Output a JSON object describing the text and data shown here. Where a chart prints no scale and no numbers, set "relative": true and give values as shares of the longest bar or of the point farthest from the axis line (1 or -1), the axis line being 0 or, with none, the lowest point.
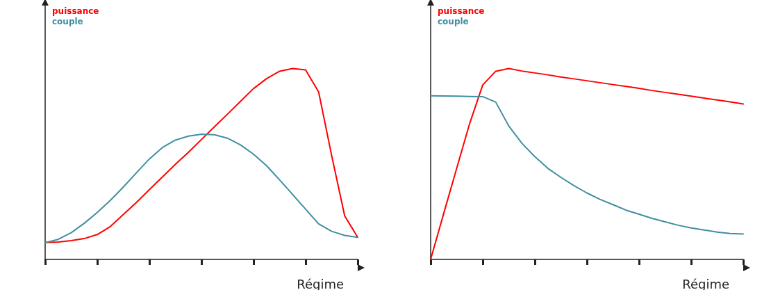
{
  "chart_data": [
    {
      "type": "line",
      "relative": true,
      "xlabel": "Régime",
      "legend": "top left",
      "marker": "none",
      "line_style": "solid",
      "grid": false,
      "tick_labels": false,
      "categories": [
        null,
        null,
        null,
        null,
        null,
        null,
        null,
        null,
        null,
        null,
        null,
        null,
        null,
        null,
        null,
        null,
        null,
        null,
        null,
        null,
        null,
        null,
        null,
        null,
        null
      ],
      "series": [
        {
          "name": "puissance",
          "color": "#ff0000",
          "values": [
            0.088,
            0.091,
            0.098,
            0.109,
            0.13,
            0.172,
            0.235,
            0.298,
            0.365,
            0.432,
            0.498,
            0.561,
            0.628,
            0.695,
            0.761,
            0.828,
            0.895,
            0.947,
            0.986,
            1,
            0.993,
            0.877,
            0.544,
            0.228,
            0.116
          ]
        },
        {
          "name": "couple",
          "color": "#3f8fa0",
          "values": [
            0.088,
            0.105,
            0.14,
            0.189,
            0.246,
            0.309,
            0.379,
            0.453,
            0.526,
            0.586,
            0.625,
            0.646,
            0.656,
            0.653,
            0.635,
            0.6,
            0.551,
            0.491,
            0.417,
            0.34,
            0.263,
            0.186,
            0.147,
            0.126,
            0.116
          ]
        }
      ]
    },
    {
      "type": "line",
      "relative": true,
      "xlabel": "Régime",
      "legend": "top left",
      "marker": "none",
      "line_style": "solid",
      "grid": false,
      "tick_labels": false,
      "categories": [
        null,
        null,
        null,
        null,
        null,
        null,
        null,
        null,
        null,
        null,
        null,
        null,
        null,
        null,
        null,
        null,
        null,
        null,
        null,
        null,
        null,
        null,
        null,
        null,
        null
      ],
      "series": [
        {
          "name": "puissance",
          "color": "#ff0000",
          "values": [
            0,
            0.24,
            0.477,
            0.713,
            0.914,
            0.986,
            1,
            0.987,
            0.977,
            0.967,
            0.956,
            0.946,
            0.936,
            0.926,
            0.916,
            0.906,
            0.896,
            0.885,
            0.875,
            0.865,
            0.855,
            0.845,
            0.835,
            0.825,
            0.814
          ]
        },
        {
          "name": "couple",
          "color": "#3f8fa0",
          "values": [
            0.857,
            0.856,
            0.855,
            0.854,
            0.853,
            0.824,
            0.699,
            0.609,
            0.538,
            0.477,
            0.43,
            0.387,
            0.348,
            0.315,
            0.287,
            0.258,
            0.237,
            0.215,
            0.197,
            0.179,
            0.165,
            0.154,
            0.143,
            0.136,
            0.133
          ]
        }
      ]
    }
  ]
}
